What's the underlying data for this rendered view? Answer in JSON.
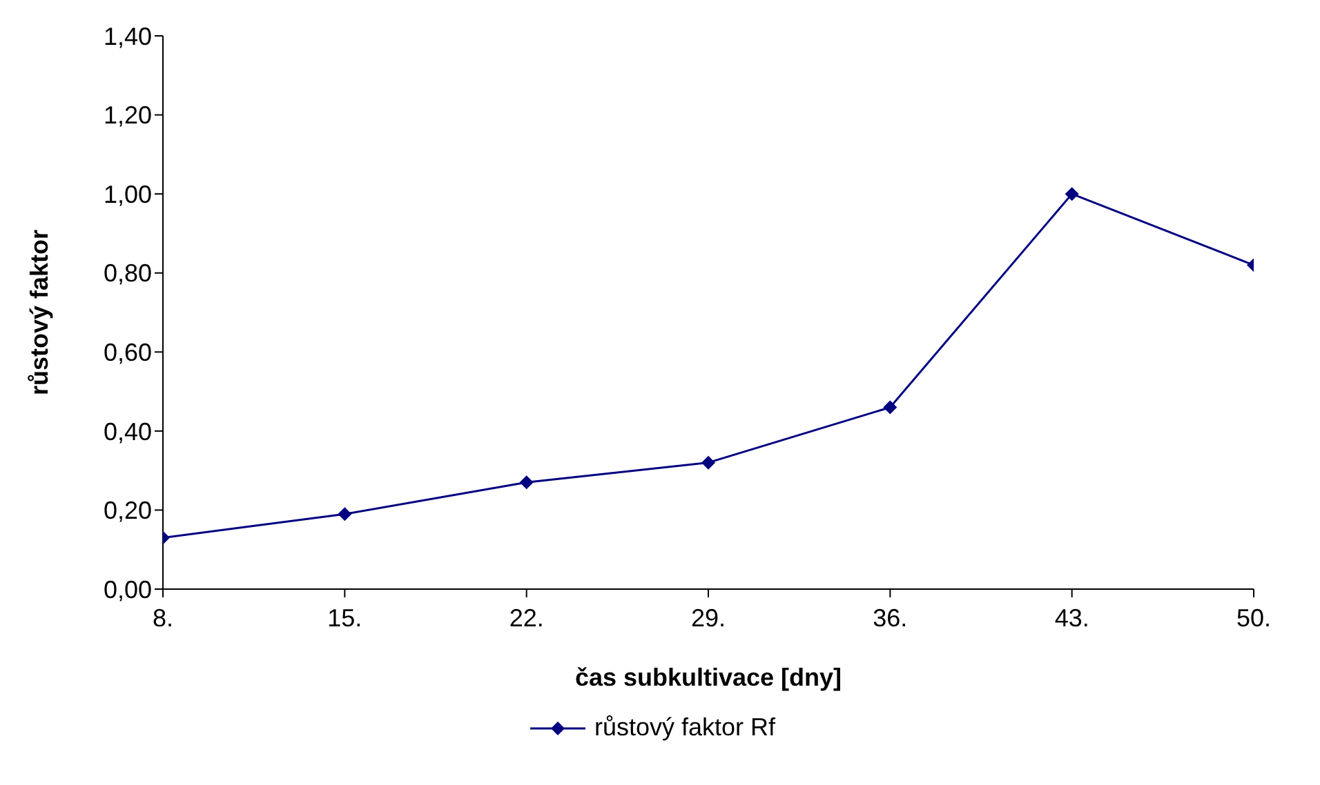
{
  "chart_data": {
    "type": "line",
    "xlabel": "čas subkultivace [dny]",
    "ylabel": "růstový faktor",
    "categories": [
      "8.",
      "15.",
      "22.",
      "29.",
      "36.",
      "43.",
      "50."
    ],
    "series": [
      {
        "name": "růstový faktor Rf",
        "color": "#000080",
        "values": [
          0.13,
          0.19,
          0.27,
          0.32,
          0.46,
          1.0,
          0.82
        ]
      }
    ],
    "ylim": [
      0,
      1.4
    ],
    "yticks": [
      {
        "value": 0,
        "label": "0,00"
      },
      {
        "value": 0.2,
        "label": "0,20"
      },
      {
        "value": 0.4,
        "label": "0,40"
      },
      {
        "value": 0.6,
        "label": "0,60"
      },
      {
        "value": 0.8,
        "label": "0,80"
      },
      {
        "value": 1.0,
        "label": "1,00"
      },
      {
        "value": 1.2,
        "label": "1,20"
      },
      {
        "value": 1.4,
        "label": "1,40"
      }
    ],
    "marker": "diamond",
    "legend": "bottom",
    "grid": false
  }
}
